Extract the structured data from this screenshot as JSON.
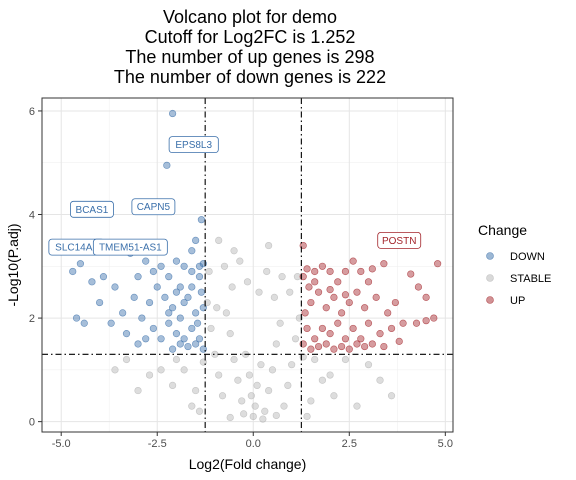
{
  "chart_data": {
    "type": "scatter",
    "title_lines": [
      "Volcano plot for demo",
      "Cutoff for Log2FC is 1.252",
      "The number of up genes is 298",
      "The number of down genes is 222"
    ],
    "xlabel": "Log2(Fold change)",
    "ylabel": "-Log10(P.adj)",
    "xlim": [
      -5.5,
      5.2
    ],
    "ylim": [
      -0.2,
      6.25
    ],
    "x_ticks": [
      -5,
      -2.5,
      0,
      2.5,
      5
    ],
    "x_tick_labels": [
      "-5.0",
      "-2.5",
      "0.0",
      "2.5",
      "5.0"
    ],
    "y_ticks": [
      0,
      2,
      4,
      6
    ],
    "y_tick_labels": [
      "0",
      "2",
      "4",
      "6"
    ],
    "grid": true,
    "vlines": [
      -1.252,
      1.252
    ],
    "hline": 1.3,
    "legend": {
      "title": "Change",
      "position": "right",
      "entries": [
        {
          "label": "DOWN",
          "color": "#3a6faa"
        },
        {
          "label": "STABLE",
          "color": "#b3b3b3"
        },
        {
          "label": "UP",
          "color": "#a3242a"
        }
      ]
    },
    "series": [
      {
        "name": "DOWN",
        "color": "#3a6faa",
        "points": [
          [
            -2.1,
            5.95
          ],
          [
            -2.25,
            4.95
          ],
          [
            -3.55,
            3.3
          ],
          [
            -4.5,
            3.05
          ],
          [
            -3.9,
            2.8
          ],
          [
            -4.7,
            2.9
          ],
          [
            -4.2,
            2.7
          ],
          [
            -4.0,
            2.3
          ],
          [
            -3.6,
            2.6
          ],
          [
            -3.2,
            3.25
          ],
          [
            -3.0,
            2.8
          ],
          [
            -2.8,
            3.1
          ],
          [
            -2.6,
            2.9
          ],
          [
            -2.4,
            3.0
          ],
          [
            -2.2,
            2.8
          ],
          [
            -2.0,
            3.1
          ],
          [
            -1.8,
            3.0
          ],
          [
            -1.6,
            2.9
          ],
          [
            -1.4,
            3.0
          ],
          [
            -1.3,
            3.05
          ],
          [
            -1.5,
            3.5
          ],
          [
            -1.35,
            3.9
          ],
          [
            -1.6,
            3.3
          ],
          [
            -1.9,
            2.6
          ],
          [
            -4.6,
            2.0
          ],
          [
            -4.4,
            1.9
          ],
          [
            -3.4,
            2.1
          ],
          [
            -3.7,
            1.9
          ],
          [
            -3.1,
            2.4
          ],
          [
            -2.9,
            2.0
          ],
          [
            -2.7,
            2.3
          ],
          [
            -2.5,
            2.6
          ],
          [
            -2.3,
            2.4
          ],
          [
            -2.1,
            2.2
          ],
          [
            -1.9,
            2.0
          ],
          [
            -1.7,
            2.4
          ],
          [
            -1.5,
            2.1
          ],
          [
            -1.35,
            2.5
          ],
          [
            -2.6,
            1.8
          ],
          [
            -2.4,
            1.6
          ],
          [
            -2.2,
            1.9
          ],
          [
            -2.0,
            1.7
          ],
          [
            -1.8,
            1.6
          ],
          [
            -1.6,
            1.8
          ],
          [
            -1.4,
            1.6
          ],
          [
            -3.0,
            1.5
          ],
          [
            -2.8,
            1.6
          ],
          [
            -1.3,
            1.4
          ],
          [
            -1.5,
            1.5
          ],
          [
            -1.7,
            1.45
          ],
          [
            -1.9,
            1.5
          ],
          [
            -2.1,
            1.4
          ],
          [
            -3.3,
            1.7
          ],
          [
            -1.4,
            2.8
          ],
          [
            -1.6,
            2.6
          ],
          [
            -1.8,
            2.3
          ],
          [
            -2.0,
            2.5
          ],
          [
            -2.2,
            2.1
          ],
          [
            -1.3,
            2.2
          ],
          [
            -1.45,
            1.9
          ]
        ]
      },
      {
        "name": "STABLE",
        "color": "#b3b3b3",
        "points": [
          [
            0.0,
            0.1
          ],
          [
            0.05,
            0.3
          ],
          [
            -0.05,
            0.5
          ],
          [
            0.1,
            0.7
          ],
          [
            -0.1,
            0.9
          ],
          [
            0.2,
            1.1
          ],
          [
            -0.2,
            1.3
          ],
          [
            0.3,
            0.2
          ],
          [
            -0.3,
            0.4
          ],
          [
            0.4,
            0.6
          ],
          [
            -0.4,
            0.8
          ],
          [
            0.5,
            1.0
          ],
          [
            -0.5,
            1.2
          ],
          [
            0.6,
            1.5
          ],
          [
            -0.6,
            1.7
          ],
          [
            0.7,
            1.9
          ],
          [
            -0.7,
            2.1
          ],
          [
            0.8,
            0.3
          ],
          [
            -0.8,
            0.5
          ],
          [
            0.9,
            0.7
          ],
          [
            -0.9,
            0.9
          ],
          [
            1.0,
            1.1
          ],
          [
            -1.0,
            1.3
          ],
          [
            1.1,
            1.6
          ],
          [
            -1.1,
            1.8
          ],
          [
            1.2,
            2.0
          ],
          [
            -1.2,
            2.3
          ],
          [
            0.15,
            2.5
          ],
          [
            -0.15,
            2.7
          ],
          [
            0.35,
            2.9
          ],
          [
            -0.35,
            3.1
          ],
          [
            0.55,
            2.4
          ],
          [
            -0.55,
            2.6
          ],
          [
            0.75,
            2.8
          ],
          [
            -0.75,
            3.0
          ],
          [
            0.95,
            2.5
          ],
          [
            -0.95,
            2.2
          ],
          [
            1.15,
            2.8
          ],
          [
            -1.15,
            2.9
          ],
          [
            -0.5,
            3.3
          ],
          [
            0.4,
            3.4
          ],
          [
            -0.9,
            3.5
          ],
          [
            1.5,
            0.4
          ],
          [
            -1.5,
            0.6
          ],
          [
            1.8,
            0.8
          ],
          [
            -1.8,
            1.0
          ],
          [
            2.1,
            0.5
          ],
          [
            -2.1,
            0.7
          ],
          [
            2.4,
            1.2
          ],
          [
            -2.4,
            1.0
          ],
          [
            2.7,
            0.3
          ],
          [
            -2.7,
            0.9
          ],
          [
            3.0,
            1.1
          ],
          [
            -3.0,
            0.6
          ],
          [
            3.3,
            0.8
          ],
          [
            -3.3,
            1.2
          ],
          [
            3.6,
            0.5
          ],
          [
            -3.6,
            1.0
          ],
          [
            1.6,
            1.2
          ],
          [
            -1.6,
            0.3
          ],
          [
            2.0,
            0.9
          ],
          [
            -2.0,
            1.2
          ],
          [
            1.4,
            0.1
          ],
          [
            -1.4,
            0.2
          ],
          [
            0.25,
            0.05
          ],
          [
            -0.25,
            0.15
          ],
          [
            0.6,
            0.12
          ],
          [
            -0.6,
            0.08
          ],
          [
            1.3,
            1.25
          ],
          [
            -1.3,
            1.15
          ]
        ]
      },
      {
        "name": "UP",
        "color": "#a3242a",
        "points": [
          [
            4.8,
            3.05
          ],
          [
            4.1,
            2.85
          ],
          [
            4.3,
            2.6
          ],
          [
            4.5,
            2.4
          ],
          [
            4.7,
            2.0
          ],
          [
            4.5,
            1.95
          ],
          [
            4.25,
            1.9
          ],
          [
            3.7,
            2.3
          ],
          [
            3.4,
            3.05
          ],
          [
            3.1,
            2.95
          ],
          [
            3.0,
            2.7
          ],
          [
            2.8,
            2.9
          ],
          [
            2.6,
            3.1
          ],
          [
            2.4,
            2.9
          ],
          [
            2.2,
            2.7
          ],
          [
            2.0,
            2.9
          ],
          [
            1.8,
            3.0
          ],
          [
            1.6,
            2.9
          ],
          [
            1.4,
            2.95
          ],
          [
            1.3,
            3.4
          ],
          [
            3.2,
            2.4
          ],
          [
            3.5,
            2.1
          ],
          [
            3.9,
            1.9
          ],
          [
            2.9,
            2.2
          ],
          [
            2.7,
            2.5
          ],
          [
            2.5,
            2.3
          ],
          [
            2.3,
            2.1
          ],
          [
            2.1,
            2.4
          ],
          [
            1.9,
            2.2
          ],
          [
            1.7,
            2.5
          ],
          [
            1.5,
            2.3
          ],
          [
            1.35,
            2.1
          ],
          [
            3.6,
            1.8
          ],
          [
            3.3,
            1.7
          ],
          [
            3.0,
            1.9
          ],
          [
            2.8,
            1.6
          ],
          [
            2.6,
            1.8
          ],
          [
            2.4,
            1.6
          ],
          [
            2.2,
            1.9
          ],
          [
            2.0,
            1.7
          ],
          [
            1.8,
            1.8
          ],
          [
            1.6,
            1.6
          ],
          [
            1.4,
            1.8
          ],
          [
            1.3,
            1.5
          ],
          [
            1.5,
            1.4
          ],
          [
            1.7,
            1.45
          ],
          [
            1.9,
            1.5
          ],
          [
            2.1,
            1.4
          ],
          [
            2.3,
            1.45
          ],
          [
            2.5,
            1.4
          ],
          [
            2.7,
            1.5
          ],
          [
            2.9,
            1.45
          ],
          [
            3.1,
            1.5
          ],
          [
            3.4,
            1.45
          ],
          [
            3.8,
            1.55
          ],
          [
            1.6,
            2.7
          ],
          [
            2.0,
            2.55
          ],
          [
            2.4,
            2.45
          ],
          [
            1.45,
            2.6
          ],
          [
            1.3,
            2.8
          ]
        ]
      }
    ],
    "annotations": [
      {
        "text": "EPS8L3",
        "x": -1.55,
        "y": 5.35,
        "series": "DOWN"
      },
      {
        "text": "BCAS1",
        "x": -4.2,
        "y": 4.1,
        "series": "DOWN"
      },
      {
        "text": "CAPN5",
        "x": -2.6,
        "y": 4.15,
        "series": "DOWN"
      },
      {
        "text": "SLC14A1",
        "x": -4.6,
        "y": 3.37,
        "series": "DOWN"
      },
      {
        "text": "TMEM51-AS1",
        "x": -3.2,
        "y": 3.37,
        "series": "DOWN"
      },
      {
        "text": "POSTN",
        "x": 3.8,
        "y": 3.5,
        "series": "UP"
      }
    ]
  }
}
